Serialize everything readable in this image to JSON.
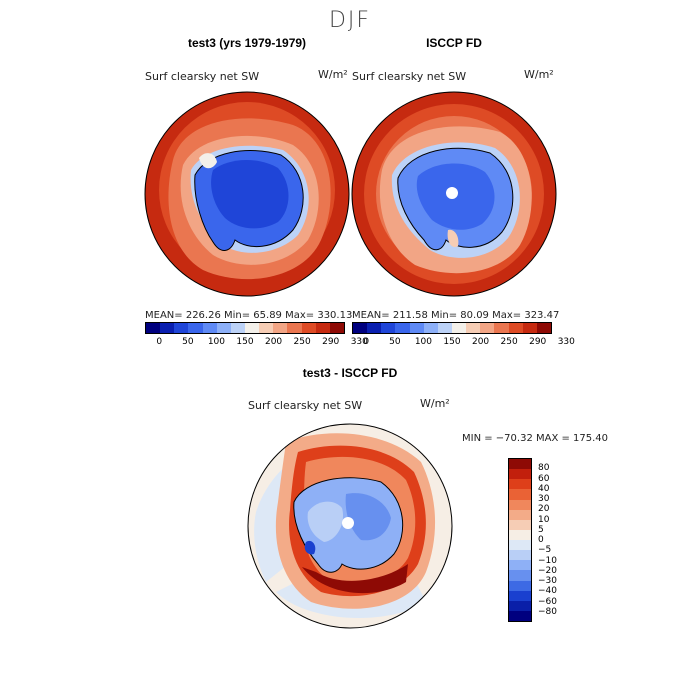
{
  "figure": {
    "title": "DJF"
  },
  "panels": [
    {
      "title": "test3 (yrs 1979-1979)",
      "field": "Surf clearsky net SW",
      "units": "W/m²",
      "stats": "MEAN= 226.26   Min=   65.89   Max= 330.13"
    },
    {
      "title": "ISCCP FD",
      "field": "Surf clearsky net SW",
      "units": "W/m²",
      "stats": "MEAN= 211.58   Min=   80.09   Max= 323.47"
    },
    {
      "title": "test3 - ISCCP FD",
      "field": "Surf clearsky net SW",
      "units": "W/m²",
      "stats": "MIN = −70.32  MAX = 175.40"
    }
  ],
  "colorbar_abs": {
    "ticks": [
      "0",
      "50",
      "100",
      "150",
      "200",
      "250",
      "290",
      "330"
    ],
    "colors": [
      "#00007f",
      "#0a1fb0",
      "#1f45d8",
      "#3a66ec",
      "#5f8af5",
      "#8db0f8",
      "#bcd2f7",
      "#f3f0ea",
      "#f6cdb5",
      "#f2a585",
      "#ea7650",
      "#de4b25",
      "#c62a10",
      "#8e0a05"
    ]
  },
  "colorbar_diff": {
    "ticks": [
      "80",
      "60",
      "40",
      "30",
      "20",
      "10",
      "5",
      "0",
      "−5",
      "−10",
      "−20",
      "−30",
      "−40",
      "−60",
      "−80"
    ],
    "colors": [
      "#8e0a05",
      "#c21f0c",
      "#de3f1a",
      "#ea6235",
      "#f0875c",
      "#f3ab88",
      "#f6cdb5",
      "#f6eee5",
      "#dde8f6",
      "#b9cff6",
      "#8eb0f6",
      "#6790ef",
      "#3d6ae4",
      "#1a40cf",
      "#0a1fa8",
      "#00007f"
    ]
  },
  "chart_data": [
    {
      "type": "heatmap",
      "title": "test3 (yrs 1979-1979)",
      "subtitle": "Surf clearsky net SW",
      "units": "W/m²",
      "projection": "south polar stereographic",
      "summary": {
        "mean": 226.26,
        "min": 65.89,
        "max": 330.13
      },
      "colorbar_levels": [
        0,
        50,
        100,
        150,
        200,
        250,
        290,
        330
      ]
    },
    {
      "type": "heatmap",
      "title": "ISCCP FD",
      "subtitle": "Surf clearsky net SW",
      "units": "W/m²",
      "projection": "south polar stereographic",
      "summary": {
        "mean": 211.58,
        "min": 80.09,
        "max": 323.47
      },
      "colorbar_levels": [
        0,
        50,
        100,
        150,
        200,
        250,
        290,
        330
      ]
    },
    {
      "type": "heatmap",
      "title": "test3 - ISCCP FD",
      "subtitle": "Surf clearsky net SW",
      "units": "W/m²",
      "projection": "south polar stereographic",
      "summary": {
        "min": -70.32,
        "max": 175.4
      },
      "colorbar_levels": [
        80,
        60,
        40,
        30,
        20,
        10,
        5,
        0,
        -5,
        -10,
        -20,
        -30,
        -40,
        -60,
        -80
      ]
    }
  ]
}
